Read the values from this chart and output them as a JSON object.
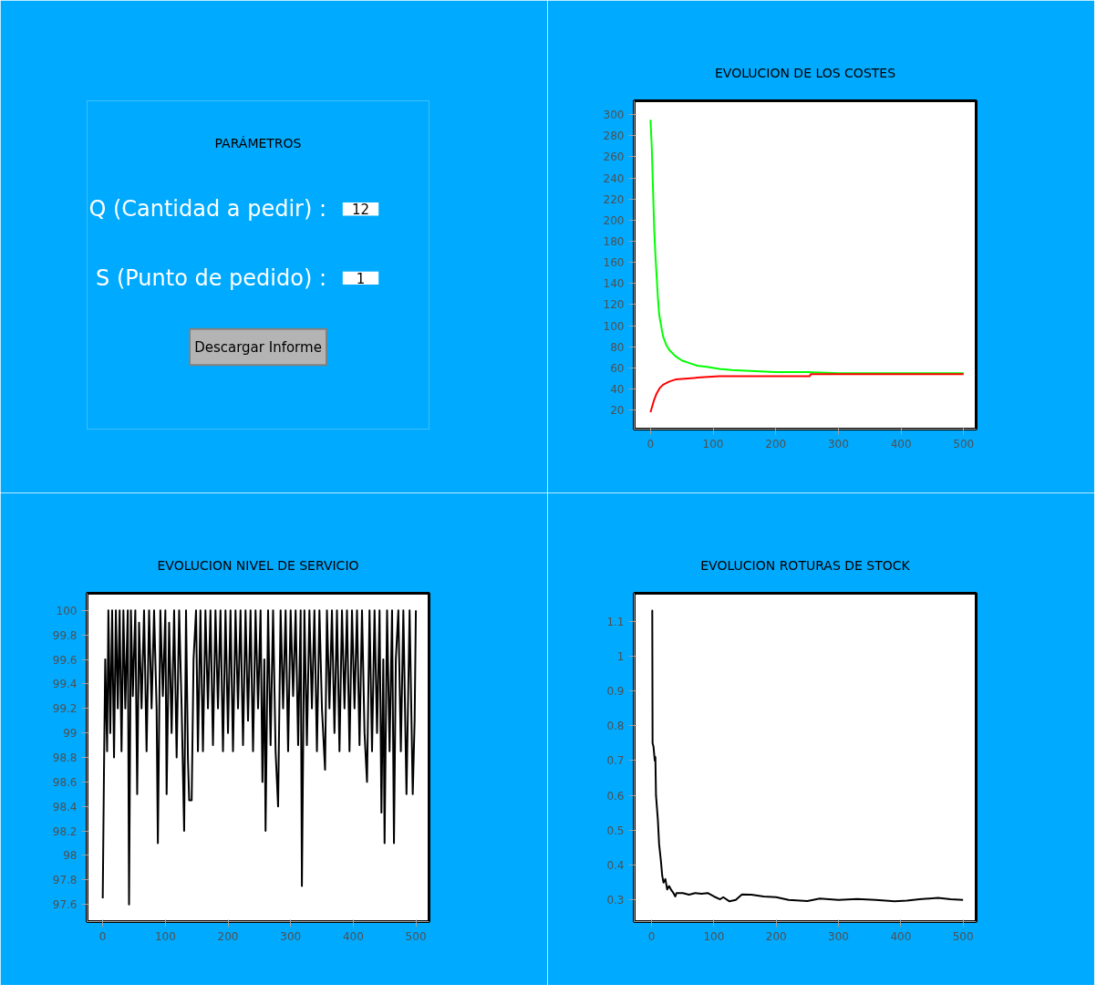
{
  "chart_data": [
    {
      "type": "other",
      "title": "PARÁMETROS",
      "annotations": [
        "Q (Cantidad a pedir) :",
        "12",
        "S (Punto de pedido) :",
        "1",
        "Descargar Informe"
      ]
    },
    {
      "type": "line",
      "title": "EVOLUCION DE LOS COSTES",
      "xlim": [
        -26,
        520
      ],
      "ylim": [
        2,
        313
      ],
      "xticks": [
        0,
        100,
        200,
        300,
        400,
        500
      ],
      "yticks": [
        20,
        40,
        60,
        80,
        100,
        120,
        140,
        160,
        180,
        200,
        220,
        240,
        260,
        280,
        300
      ],
      "grid": false,
      "series": [
        {
          "color": "#00ff00",
          "x": [
            0,
            2,
            4,
            6,
            8,
            10,
            12,
            14,
            17,
            20,
            25,
            30,
            40,
            50,
            60,
            75,
            90,
            110,
            130,
            160,
            200,
            250,
            300,
            400,
            500
          ],
          "values": [
            295,
            270,
            230,
            190,
            165,
            145,
            125,
            110,
            100,
            90,
            82,
            77,
            71,
            67,
            65,
            62,
            61,
            59,
            58,
            57,
            56,
            56,
            55,
            55,
            55
          ]
        },
        {
          "color": "#ff0000",
          "x": [
            0,
            3,
            6,
            10,
            15,
            20,
            30,
            40,
            60,
            80,
            110,
            150,
            200,
            254,
            256,
            300,
            400,
            500
          ],
          "values": [
            18,
            24,
            30,
            36,
            41,
            44,
            47,
            49,
            50,
            51,
            52,
            52,
            52,
            52,
            54,
            54,
            54,
            54
          ]
        }
      ]
    },
    {
      "type": "line",
      "title": "EVOLUCION NIVEL DE SERVICIO",
      "xlim": [
        -25,
        521
      ],
      "ylim": [
        97.46,
        100.14
      ],
      "xticks": [
        0,
        100,
        200,
        300,
        400,
        500
      ],
      "yticks": [
        97.6,
        97.8,
        98,
        98.2,
        98.4,
        98.6,
        98.8,
        99,
        99.2,
        99.4,
        99.6,
        99.8,
        100
      ],
      "grid": false,
      "series": [
        {
          "color": "#000000",
          "x": [
            0,
            2,
            4,
            7,
            9,
            12,
            15,
            18,
            21,
            24,
            27,
            30,
            33,
            36,
            40,
            42,
            45,
            48,
            52,
            55,
            58,
            62,
            66,
            70,
            74,
            78,
            82,
            86,
            88,
            92,
            96,
            100,
            102,
            106,
            110,
            114,
            118,
            122,
            126,
            130,
            133,
            136,
            138,
            142,
            145,
            149,
            152,
            156,
            160,
            164,
            168,
            172,
            176,
            180,
            184,
            188,
            192,
            196,
            200,
            204,
            208,
            212,
            216,
            220,
            224,
            228,
            232,
            236,
            240,
            244,
            248,
            252,
            255,
            258,
            260,
            264,
            268,
            272,
            276,
            280,
            284,
            288,
            292,
            296,
            300,
            304,
            308,
            312,
            316,
            318,
            322,
            326,
            330,
            334,
            338,
            342,
            346,
            350,
            355,
            358,
            362,
            366,
            370,
            374,
            378,
            382,
            386,
            390,
            394,
            398,
            402,
            406,
            410,
            414,
            418,
            422,
            426,
            430,
            434,
            438,
            442,
            445,
            448,
            450,
            454,
            458,
            462,
            465,
            468,
            472,
            476,
            480,
            485,
            490,
            495,
            498,
            500
          ],
          "values": [
            97.65,
            98.7,
            99.6,
            98.85,
            100,
            99.0,
            100,
            98.8,
            100,
            99.2,
            100,
            98.85,
            100,
            99.2,
            100,
            97.6,
            100,
            99.3,
            100,
            98.5,
            99.9,
            99.2,
            100,
            98.85,
            100,
            99.2,
            100,
            99.2,
            98.1,
            100,
            99.3,
            100,
            98.5,
            99.9,
            99.0,
            100,
            98.8,
            100,
            99.2,
            98.2,
            100,
            98.8,
            98.45,
            98.45,
            99.6,
            100,
            98.85,
            100,
            98.85,
            100,
            99.2,
            100,
            98.9,
            100,
            99.2,
            100,
            98.85,
            100,
            99.0,
            100,
            98.85,
            100,
            99.2,
            100,
            98.9,
            100,
            99.1,
            100,
            98.85,
            100,
            99.2,
            100,
            98.6,
            99.6,
            98.2,
            100,
            98.9,
            100,
            98.85,
            98.4,
            100,
            99.2,
            100,
            98.85,
            100,
            99.3,
            100,
            98.9,
            100,
            97.75,
            100,
            98.9,
            100,
            99.2,
            100,
            98.85,
            100,
            99.2,
            98.7,
            100,
            99.2,
            100,
            99.0,
            100,
            98.85,
            100,
            99.2,
            100,
            98.85,
            100,
            99.2,
            100,
            98.9,
            100,
            99.0,
            98.6,
            100,
            98.85,
            100,
            99.0,
            100,
            98.35,
            99.6,
            98.1,
            100,
            98.85,
            100,
            98.1,
            99.6,
            100,
            98.85,
            100,
            98.5,
            100,
            98.5,
            99.1,
            100
          ]
        }
      ]
    },
    {
      "type": "line",
      "title": "EVOLUCION ROTURAS DE STOCK",
      "xlim": [
        -28,
        521
      ],
      "ylim": [
        0.238,
        1.18
      ],
      "xticks": [
        0,
        100,
        200,
        300,
        400,
        500
      ],
      "yticks": [
        0.3,
        0.4,
        0.5,
        0.6,
        0.7,
        0.8,
        0.9,
        1,
        1.1
      ],
      "grid": false,
      "series": [
        {
          "color": "#000000",
          "x": [
            0,
            1,
            1.5,
            3,
            5,
            6,
            7,
            10,
            12,
            15,
            17,
            19,
            22,
            25,
            28,
            31,
            35,
            38,
            40,
            50,
            60,
            70,
            80,
            90,
            100,
            110,
            115,
            125,
            135,
            145,
            160,
            180,
            200,
            220,
            250,
            270,
            300,
            330,
            360,
            390,
            410,
            430,
            460,
            480,
            500
          ],
          "values": [
            1.13,
            1.13,
            0.75,
            0.74,
            0.7,
            0.71,
            0.6,
            0.53,
            0.46,
            0.41,
            0.37,
            0.35,
            0.36,
            0.33,
            0.34,
            0.33,
            0.32,
            0.31,
            0.32,
            0.32,
            0.315,
            0.32,
            0.318,
            0.32,
            0.31,
            0.302,
            0.308,
            0.296,
            0.3,
            0.316,
            0.315,
            0.31,
            0.308,
            0.3,
            0.297,
            0.304,
            0.3,
            0.303,
            0.3,
            0.296,
            0.298,
            0.302,
            0.306,
            0.302,
            0.3
          ]
        }
      ]
    }
  ]
}
